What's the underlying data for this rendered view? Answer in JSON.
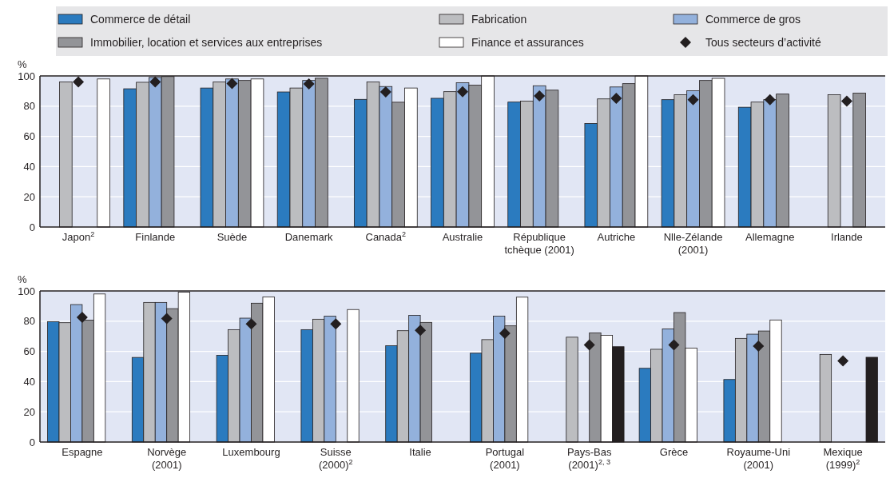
{
  "chart_data": [
    {
      "type": "bar",
      "ylabel": "%",
      "categories": [
        "Japon$^{2}$",
        "Finlande",
        "Suède",
        "Danemark",
        "Canada$^{2}$",
        "Australie",
        "République\ntchèque (2001)",
        "Autriche",
        "Nlle-Zélande\n(2001)",
        "Allemagne",
        "Irlande"
      ],
      "ylim": [
        0,
        100
      ],
      "yticks": [
        0,
        20,
        40,
        60,
        80,
        100
      ],
      "grid": "y",
      "legend": "top",
      "series": [
        {
          "name": "Commerce de détail",
          "color": "#2b7bbf",
          "values": [
            null,
            91.5,
            92,
            89.4,
            84.5,
            85.2,
            82.7,
            68.5,
            84.3,
            79.3,
            null
          ]
        },
        {
          "name": "Fabrication",
          "color": "#bcbdc0",
          "values": [
            96,
            95.8,
            96,
            92,
            96,
            89.6,
            83.3,
            84.8,
            87.6,
            82.7,
            87.6
          ]
        },
        {
          "name": "Commerce de gros",
          "color": "#93b1dc",
          "values": [
            null,
            99,
            98,
            97,
            93,
            95.5,
            93.5,
            92.7,
            90.2,
            84.3,
            null
          ]
        },
        {
          "name": "Immobilier, location et services aux entreprises",
          "color": "#939498",
          "values": [
            null,
            99.6,
            97,
            98.5,
            82.6,
            93.9,
            90.6,
            94.9,
            97,
            88,
            88.6
          ]
        },
        {
          "name": "Finance et assurances",
          "color": "#ffffff",
          "values": [
            98,
            null,
            98,
            null,
            92,
            100,
            null,
            100,
            98.4,
            null,
            null
          ]
        },
        {
          "name": "Tous secteurs d’activité",
          "type": "scatter",
          "marker": "diamond",
          "color": "#231f20",
          "values": [
            96,
            96,
            95,
            94.7,
            89.4,
            89.6,
            86.8,
            85.2,
            84.3,
            84.3,
            83.3
          ]
        }
      ]
    },
    {
      "type": "bar",
      "ylabel": "%",
      "categories": [
        "Espagne",
        "Norvège\n(2001)",
        "Luxembourg",
        "Suisse\n(2000)$^{2}$",
        "Italie",
        "Portugal\n(2001)",
        "Pays-Bas\n(2001)$^{2, 3}$",
        "Grèce",
        "Royaume-Uni\n(2001)",
        "Mexique\n(1999)$^{2}$"
      ],
      "ylim": [
        0,
        100
      ],
      "yticks": [
        0,
        20,
        40,
        60,
        80,
        100
      ],
      "grid": "y",
      "series": [
        {
          "color": "#2b7bbf",
          "values": [
            79.7,
            56,
            57.4,
            74.4,
            63.8,
            58.8,
            null,
            48.8,
            41.4,
            null
          ]
        },
        {
          "color": "#bcbdc0",
          "values": [
            79,
            92.4,
            74.4,
            81.3,
            73.7,
            67.8,
            69.4,
            61.4,
            68.6,
            58
          ]
        },
        {
          "color": "#93b1dc",
          "values": [
            91,
            92.4,
            82,
            83.3,
            83.9,
            83.3,
            null,
            74.9,
            71.4,
            null
          ]
        },
        {
          "color": "#939498",
          "values": [
            80.7,
            88.3,
            91.9,
            null,
            79.2,
            76.9,
            72.2,
            85.7,
            73.5,
            null
          ]
        },
        {
          "color": "#ffffff",
          "values": [
            98,
            99.2,
            96,
            87.7,
            null,
            95.9,
            70.6,
            62.2,
            80.8,
            null
          ]
        },
        {
          "color": "#231f20",
          "values": [
            null,
            null,
            null,
            null,
            null,
            null,
            63.1,
            null,
            null,
            56.1
          ]
        },
        {
          "type": "scatter",
          "marker": "diamond",
          "color": "#231f20",
          "values": [
            82.6,
            81.8,
            78.2,
            78.2,
            73.9,
            72,
            64.3,
            64.3,
            63.5,
            53.7
          ]
        }
      ]
    }
  ]
}
